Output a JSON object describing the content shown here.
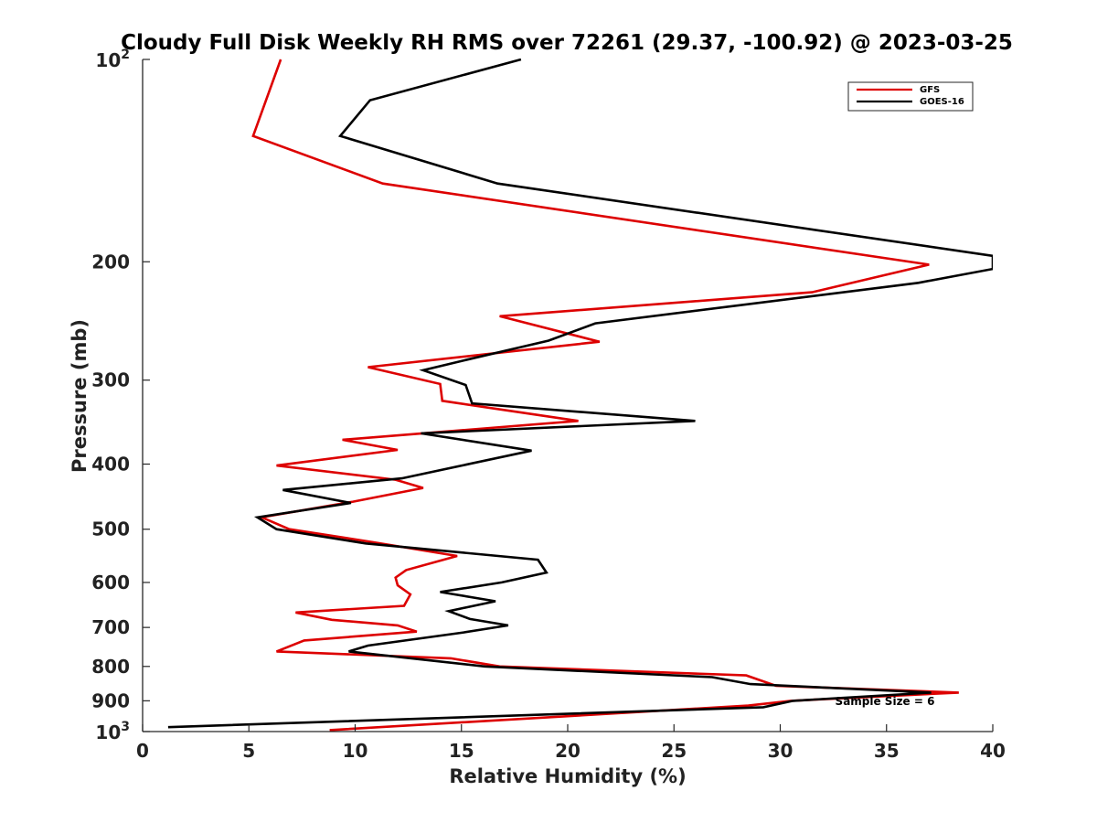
{
  "chart_data": {
    "type": "line",
    "title": "Cloudy Full Disk Weekly RH RMS over 72261 (29.37, -100.92) @ 2023-03-25",
    "xlabel": "Relative Humidity (%)",
    "ylabel": "Pressure (mb)",
    "xlim": [
      0,
      40
    ],
    "ylim": [
      1000,
      100
    ],
    "y_scale": "log",
    "y_reversed": true,
    "x_ticks": [
      "0",
      "5",
      "10",
      "15",
      "20",
      "25",
      "30",
      "35",
      "40"
    ],
    "y_ticks": [
      {
        "value": 100,
        "base": "10",
        "exp": "2"
      },
      {
        "value": 200,
        "label": "200"
      },
      {
        "value": 300,
        "label": "300"
      },
      {
        "value": 400,
        "label": "400"
      },
      {
        "value": 500,
        "label": "500"
      },
      {
        "value": 600,
        "label": "600"
      },
      {
        "value": 700,
        "label": "700"
      },
      {
        "value": 800,
        "label": "800"
      },
      {
        "value": 900,
        "label": "900"
      },
      {
        "value": 1000,
        "base": "10",
        "exp": "3"
      }
    ],
    "legend_position": "top-right",
    "grid": false,
    "annotation": "Sample Size = 6",
    "series": [
      {
        "name": "GFS",
        "color": "#dd0000",
        "points": [
          [
            6.5,
            100
          ],
          [
            5.2,
            130
          ],
          [
            11.3,
            153
          ],
          [
            37.0,
            202
          ],
          [
            31.5,
            222
          ],
          [
            16.8,
            241
          ],
          [
            21.5,
            263
          ],
          [
            10.6,
            287
          ],
          [
            14.0,
            304
          ],
          [
            14.1,
            322
          ],
          [
            20.5,
            345
          ],
          [
            9.4,
            368
          ],
          [
            12.0,
            381
          ],
          [
            6.3,
            402
          ],
          [
            11.9,
            422
          ],
          [
            13.2,
            434
          ],
          [
            9.9,
            455
          ],
          [
            5.6,
            480
          ],
          [
            6.9,
            500
          ],
          [
            10.9,
            523
          ],
          [
            14.8,
            548
          ],
          [
            12.4,
            575
          ],
          [
            11.9,
            590
          ],
          [
            12.0,
            606
          ],
          [
            12.6,
            625
          ],
          [
            12.3,
            650
          ],
          [
            7.2,
            665
          ],
          [
            8.9,
            682
          ],
          [
            12.0,
            695
          ],
          [
            12.9,
            710
          ],
          [
            7.6,
            732
          ],
          [
            6.3,
            760
          ],
          [
            14.5,
            778
          ],
          [
            16.8,
            800
          ],
          [
            28.4,
            825
          ],
          [
            29.8,
            855
          ],
          [
            38.4,
            875
          ],
          [
            30.5,
            900
          ],
          [
            28.5,
            915
          ],
          [
            8.8,
            995
          ]
        ]
      },
      {
        "name": "GOES-16",
        "color": "#000000",
        "points": [
          [
            17.8,
            100
          ],
          [
            10.7,
            115
          ],
          [
            9.3,
            130
          ],
          [
            16.7,
            153
          ],
          [
            40.0,
            196
          ],
          [
            40.0,
            205
          ],
          [
            36.5,
            215
          ],
          [
            21.3,
            247
          ],
          [
            19.1,
            262
          ],
          [
            15.2,
            280
          ],
          [
            13.2,
            290
          ],
          [
            15.2,
            305
          ],
          [
            15.5,
            325
          ],
          [
            26.0,
            345
          ],
          [
            13.1,
            360
          ],
          [
            18.3,
            382
          ],
          [
            12.2,
            420
          ],
          [
            6.6,
            437
          ],
          [
            9.8,
            457
          ],
          [
            5.4,
            480
          ],
          [
            6.3,
            500
          ],
          [
            10.5,
            525
          ],
          [
            18.6,
            555
          ],
          [
            19.0,
            580
          ],
          [
            16.9,
            600
          ],
          [
            14.0,
            620
          ],
          [
            16.6,
            640
          ],
          [
            14.4,
            662
          ],
          [
            15.4,
            680
          ],
          [
            17.2,
            695
          ],
          [
            15.1,
            712
          ],
          [
            10.6,
            745
          ],
          [
            9.7,
            760
          ],
          [
            16.1,
            800
          ],
          [
            26.8,
            830
          ],
          [
            28.6,
            850
          ],
          [
            37.1,
            875
          ],
          [
            30.6,
            900
          ],
          [
            29.2,
            920
          ],
          [
            1.2,
            985
          ]
        ]
      }
    ]
  }
}
